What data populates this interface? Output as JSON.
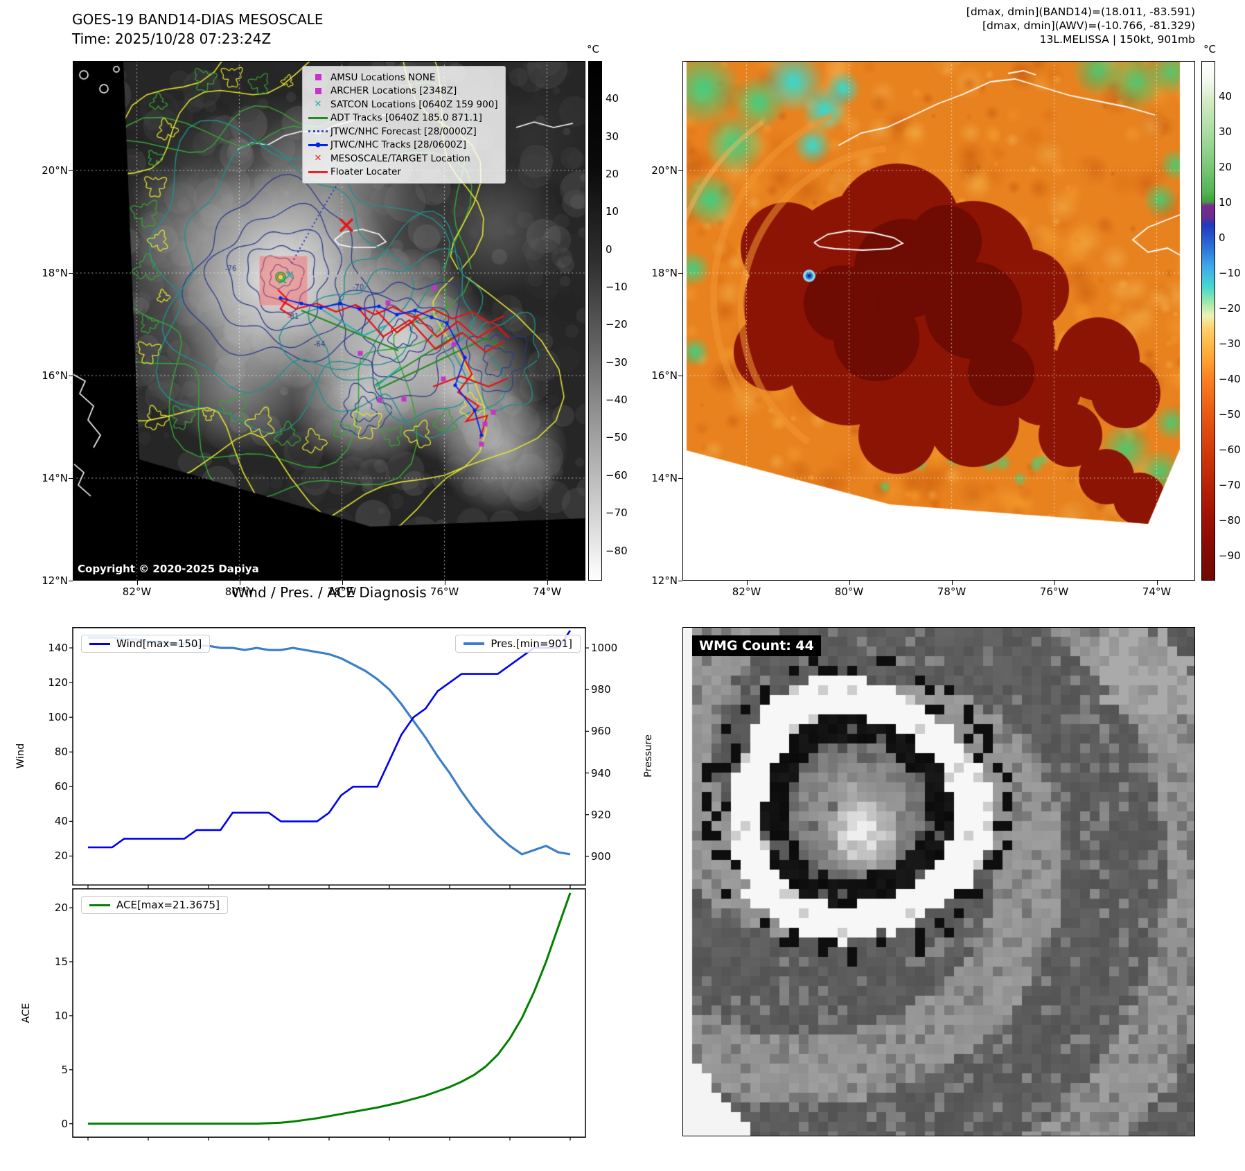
{
  "band14": {
    "title": "GOES-19 BAND14-DIAS MESOSCALE",
    "time": "Time: 2025/10/28 07:23:24Z",
    "copyright": "Copyright © 2020-2025 Dapiya",
    "legend": [
      {
        "label": "AMSU Locations NONE",
        "marker": "square",
        "color": "#c832c8"
      },
      {
        "label": "ARCHER Locations [2348Z]",
        "marker": "square",
        "color": "#c832c8"
      },
      {
        "label": "SATCON Locations [0640Z 159 900]",
        "marker": "x",
        "color": "#20b2aa"
      },
      {
        "label": "ADT Tracks [0640Z 185.0 871.1]",
        "marker": "line",
        "color": "#1e8c1e"
      },
      {
        "label": "JTWC/NHC Forecast [28/0000Z]",
        "marker": "dotted",
        "color": "#3344cc"
      },
      {
        "label": "JTWC/NHC Tracks [28/0600Z]",
        "marker": "line-dot",
        "color": "#0022ee"
      },
      {
        "label": "MESOSCALE/TARGET Location",
        "marker": "x",
        "color": "#ee2222"
      },
      {
        "label": "Floater Locater",
        "marker": "line",
        "color": "#ee2222"
      }
    ],
    "xticks": [
      "82°W",
      "80°W",
      "78°W",
      "76°W",
      "74°W"
    ],
    "yticks": [
      "20°N",
      "18°N",
      "16°N",
      "14°N",
      "12°N"
    ],
    "colorbar": {
      "unit": "°C",
      "ticks": [
        "40",
        "30",
        "20",
        "10",
        "0",
        "−10",
        "−20",
        "−30",
        "−40",
        "−50",
        "−60",
        "−70",
        "−80"
      ]
    },
    "contour_labels": [
      "-76",
      "-81",
      "-64",
      "-70"
    ]
  },
  "awv": {
    "title_lines": [
      "[dmax, dmin](BAND14)=(18.011, -83.591)",
      "[dmax, dmin](AWV)=(-10.766, -81.329)",
      "13L.MELISSA | 150kt, 901mb"
    ],
    "xticks": [
      "82°W",
      "80°W",
      "78°W",
      "76°W",
      "74°W"
    ],
    "yticks": [
      "20°N",
      "18°N",
      "16°N",
      "14°N",
      "12°N"
    ],
    "colorbar": {
      "unit": "°C",
      "ticks": [
        "40",
        "30",
        "20",
        "10",
        "0",
        "−10",
        "−20",
        "−30",
        "−40",
        "−50",
        "−60",
        "−70",
        "−80",
        "−90"
      ]
    }
  },
  "diagnosis": {
    "title": "Wind / Pres. / ACE Diagnosis",
    "wind_ylabel": "Wind",
    "pressure_ylabel": "Pressure",
    "ace_ylabel": "ACE",
    "legend_wind": "Wind[max=150]",
    "legend_pres": "Pres.[min=901]",
    "legend_ace": "ACE[max=21.3675]",
    "wind_ticks": [
      "20",
      "40",
      "60",
      "80",
      "100",
      "120",
      "140"
    ],
    "pressure_ticks": [
      "900",
      "920",
      "940",
      "960",
      "980",
      "1000"
    ],
    "ace_ticks": [
      "0",
      "5",
      "10",
      "15",
      "20"
    ]
  },
  "wmg": {
    "label": "WMG Count: 44"
  },
  "chart_data": [
    {
      "type": "line",
      "title": "Wind / Pres. / ACE Diagnosis",
      "x": "track time steps (axis unlabeled, 41 points)",
      "grid": false,
      "series": [
        {
          "name": "Wind[max=150]",
          "ylabel": "Wind",
          "axis": "left",
          "color": "#0000ee",
          "ylim": [
            3,
            152
          ],
          "max": 150,
          "values": [
            25,
            25,
            25,
            30,
            30,
            30,
            30,
            30,
            30,
            35,
            35,
            35,
            45,
            45,
            45,
            45,
            40,
            40,
            40,
            40,
            45,
            55,
            60,
            60,
            60,
            75,
            90,
            100,
            105,
            115,
            120,
            125,
            125,
            125,
            125,
            130,
            135,
            140,
            140,
            140,
            150
          ]
        },
        {
          "name": "Pres.[min=901]",
          "ylabel": "Pressure",
          "axis": "right",
          "color": "#3d7ec8",
          "ylim": [
            886,
            1010
          ],
          "min": 901,
          "values": [
            1005,
            1005,
            1005,
            1004,
            1004,
            1003,
            1003,
            1002,
            1002,
            1001,
            1001,
            1000,
            1000,
            999,
            1000,
            999,
            999,
            1000,
            999,
            998,
            997,
            995,
            992,
            989,
            985,
            980,
            973,
            965,
            957,
            948,
            940,
            931,
            923,
            916,
            910,
            905,
            901,
            903,
            905,
            902,
            901
          ]
        }
      ]
    },
    {
      "type": "line",
      "series": [
        {
          "name": "ACE[max=21.3675]",
          "ylabel": "ACE",
          "color": "#008000",
          "ylim": [
            -1.3,
            21.8
          ],
          "max": 21.3675,
          "values": [
            0,
            0,
            0,
            0,
            0,
            0,
            0,
            0,
            0,
            0,
            0,
            0,
            0,
            0,
            0,
            0.05,
            0.1,
            0.2,
            0.35,
            0.5,
            0.7,
            0.9,
            1.1,
            1.3,
            1.5,
            1.75,
            2,
            2.3,
            2.6,
            3,
            3.4,
            3.9,
            4.5,
            5.3,
            6.4,
            7.9,
            9.8,
            12.2,
            15,
            18.2,
            21.3675
          ]
        }
      ]
    }
  ]
}
